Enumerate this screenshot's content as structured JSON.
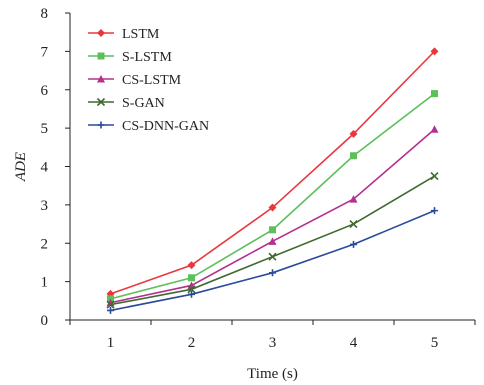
{
  "chart_data": {
    "type": "line",
    "xlabel": "Time (s)",
    "ylabel": "ADE",
    "x": [
      1,
      2,
      3,
      4,
      5
    ],
    "ylim": [
      0,
      8
    ],
    "yticks": [
      0,
      1,
      2,
      3,
      4,
      5,
      6,
      7,
      8
    ],
    "grid": false,
    "legend_position": "top-left",
    "series": [
      {
        "name": "LSTM",
        "values": [
          0.68,
          1.43,
          2.93,
          4.85,
          7.0
        ],
        "color": "#e8383d",
        "marker": "diamond"
      },
      {
        "name": "S-LSTM",
        "values": [
          0.55,
          1.1,
          2.35,
          4.28,
          5.9
        ],
        "color": "#5cbf5a",
        "marker": "square"
      },
      {
        "name": "CS-LSTM",
        "values": [
          0.45,
          0.9,
          2.05,
          3.15,
          4.97
        ],
        "color": "#b4308f",
        "marker": "triangle"
      },
      {
        "name": "S-GAN",
        "values": [
          0.4,
          0.8,
          1.65,
          2.5,
          3.75
        ],
        "color": "#3f6a2f",
        "marker": "x"
      },
      {
        "name": "CS-DNN-GAN",
        "values": [
          0.25,
          0.67,
          1.23,
          1.97,
          2.85
        ],
        "color": "#2a4a9c",
        "marker": "plus"
      }
    ]
  }
}
